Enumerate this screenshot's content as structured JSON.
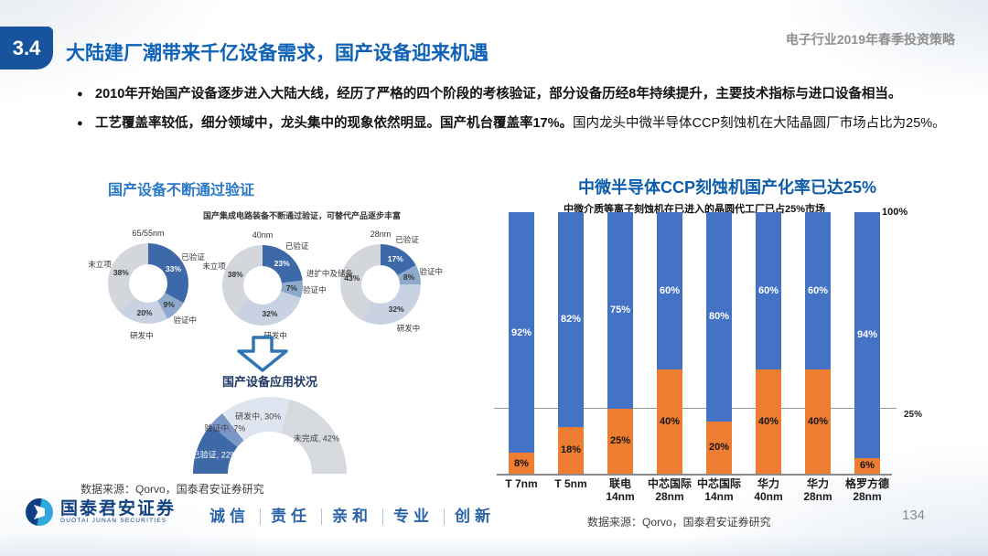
{
  "header": {
    "section_number": "3.4",
    "title": "大陆建厂潮带来千亿设备需求，国产设备迎来机遇",
    "report_title": "电子行业2019年春季投资策略"
  },
  "bullets": {
    "marker": "●",
    "items": [
      {
        "bold": "2010年开始国产设备逐步进入大陆大线，经历了严格的四个阶段的考核验证，部分设备历经8年持续提升，主要技术指标与进口设备相当。",
        "rest": ""
      },
      {
        "bold": "工艺覆盖率较低，细分领域中，龙头集中的现象依然明显。国产机台覆盖率17%。",
        "rest": "国内龙头中微半导体CCP刻蚀机在大陆晶圆厂市场占比为25%。"
      }
    ]
  },
  "left_panel": {
    "heading": "国产设备不断通过验证",
    "chart_title": "国产集成电路装备不断通过验证，可替代产品逐步丰富",
    "arrow_label": "国产设备应用状况",
    "source": "数据来源：Qorvo，国泰君安证券研究"
  },
  "right_panel": {
    "heading": "中微半导体CCP刻蚀机国产化率已达25%",
    "chart_title": "中微介质等离子刻蚀机在已进入的晶圆代工厂已占25%市场",
    "max_annotation": "← 100%",
    "gridline_label": "25%",
    "source": "数据来源：Qorvo，国泰君安证券研究"
  },
  "footer": {
    "logo_cn": "国泰君安证券",
    "logo_en": "GUOTAI JUNAN SECURITIES",
    "slogan": [
      "诚信",
      "责任",
      "亲和",
      "专业",
      "创新"
    ],
    "page_number": "134"
  },
  "chart_data": [
    {
      "type": "pie",
      "subtype": "donut",
      "title": "65/55nm",
      "labels": [
        "已验证",
        "验证中",
        "研发中",
        "未立项"
      ],
      "values": [
        33,
        9,
        20,
        38
      ],
      "colors": [
        "#3d69a8",
        "#8fa9cd",
        "#c8d2e2",
        "#d3d6db"
      ]
    },
    {
      "type": "pie",
      "subtype": "donut",
      "title": "40nm",
      "labels": [
        "已验证",
        "验证中",
        "研发中",
        "未立项"
      ],
      "values": [
        23,
        7,
        32,
        38
      ],
      "colors": [
        "#3d69a8",
        "#8fa9cd",
        "#c8d2e2",
        "#d3d6db"
      ]
    },
    {
      "type": "pie",
      "subtype": "donut",
      "title": "28nm",
      "labels": [
        "已验证",
        "验证中",
        "研发中",
        "进扩中及储备"
      ],
      "values": [
        17,
        8,
        32,
        43
      ],
      "colors": [
        "#3d69a8",
        "#8fa9cd",
        "#c8d2e2",
        "#d3d6db"
      ]
    },
    {
      "type": "pie",
      "subtype": "half-donut",
      "title": "国产设备应用状况",
      "labels": [
        "已验证",
        "验证中",
        "研发中",
        "未完成"
      ],
      "values": [
        22,
        7,
        30,
        42
      ],
      "colors": [
        "#3d69a8",
        "#7b97c7",
        "#dfe5f0",
        "#d6d9de"
      ]
    },
    {
      "type": "bar",
      "subtype": "stacked",
      "title": "中微介质等离子刻蚀机在已进入的晶圆代工厂已占25%市场",
      "categories": [
        "T 7nm",
        "T 5nm",
        "联电14nm",
        "中芯国际28nm",
        "中芯国际14nm",
        "华力40nm",
        "华力28nm",
        "格罗方德28nm"
      ],
      "series": [
        {
          "name": "bottom-orange",
          "color": "#ed7d31",
          "values": [
            8,
            18,
            25,
            40,
            20,
            40,
            40,
            6
          ]
        },
        {
          "name": "top-blue",
          "color": "#4472c4",
          "values": [
            92,
            82,
            75,
            60,
            80,
            60,
            60,
            94
          ]
        }
      ],
      "ylim": [
        0,
        100
      ],
      "gridline": 25,
      "annotations": [
        "← 100%",
        "25%"
      ]
    }
  ]
}
